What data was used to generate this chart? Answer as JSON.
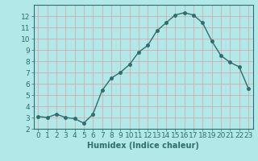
{
  "x": [
    0,
    1,
    2,
    3,
    4,
    5,
    6,
    7,
    8,
    9,
    10,
    11,
    12,
    13,
    14,
    15,
    16,
    17,
    18,
    19,
    20,
    21,
    22,
    23
  ],
  "y": [
    3.1,
    3.0,
    3.3,
    3.0,
    2.9,
    2.5,
    3.3,
    5.4,
    6.5,
    7.0,
    7.7,
    8.8,
    9.4,
    10.7,
    11.4,
    12.1,
    12.3,
    12.1,
    11.4,
    9.8,
    8.5,
    7.9,
    7.5,
    5.6
  ],
  "line_color": "#2d6e6e",
  "marker": "o",
  "markersize": 2.5,
  "linewidth": 1.0,
  "bg_color": "#b3e8e8",
  "grid_color": "#e8e8e8",
  "xlabel": "Humidex (Indice chaleur)",
  "xlim": [
    -0.5,
    23.5
  ],
  "ylim": [
    2,
    13
  ],
  "yticks": [
    2,
    3,
    4,
    5,
    6,
    7,
    8,
    9,
    10,
    11,
    12
  ],
  "xticks": [
    0,
    1,
    2,
    3,
    4,
    5,
    6,
    7,
    8,
    9,
    10,
    11,
    12,
    13,
    14,
    15,
    16,
    17,
    18,
    19,
    20,
    21,
    22,
    23
  ],
  "tick_color": "#2d6e6e",
  "label_color": "#2d6e6e",
  "xlabel_fontsize": 7,
  "tick_fontsize": 6.5
}
